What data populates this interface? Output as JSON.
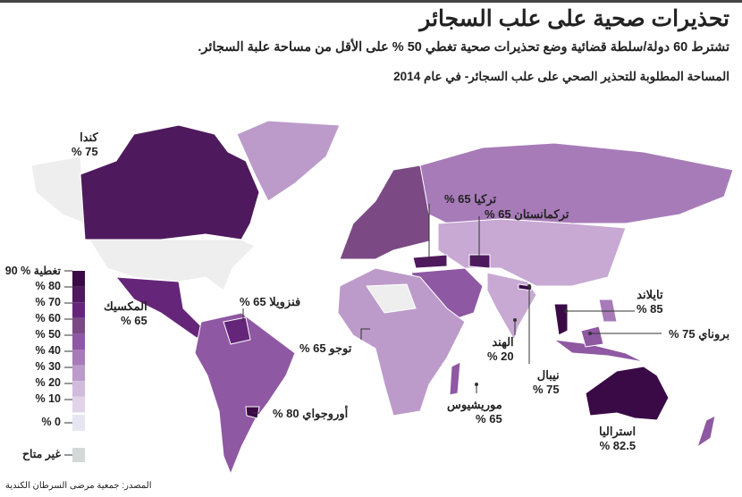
{
  "title": "تحذيرات صحية على علب السجائر",
  "subtitle": "تشترط 60 دولة/سلطة قضائية وضع تحذيرات صحية تغطي 50 % على الأقل من مساحة علبة السجائر.",
  "map_label": "المساحة المطلوبة للتحذير الصحي على علب السجائر- في عام 2014",
  "source": "المصدر: جمعية مرضى السرطان الكندية",
  "legend": {
    "items": [
      {
        "label": "90 % تغطية",
        "color": "#3a0a47"
      },
      {
        "label": "% 80",
        "color": "#4e1a5d"
      },
      {
        "label": "% 70",
        "color": "#65267a"
      },
      {
        "label": "% 60",
        "color": "#7b4a85"
      },
      {
        "label": "% 50",
        "color": "#8f58a3"
      },
      {
        "label": "% 40",
        "color": "#a77bb8"
      },
      {
        "label": "% 30",
        "color": "#bc9bca"
      },
      {
        "label": "% 20",
        "color": "#d1bbdc"
      },
      {
        "label": "% 10",
        "color": "#e1d3e8"
      },
      {
        "label": "% 0",
        "color": "#e6e6f3"
      }
    ],
    "not_available": {
      "label": "غير متاح",
      "color": "#d3d9d9"
    }
  },
  "callouts": {
    "canada": {
      "name": "كندا",
      "value": "75 %"
    },
    "mexico": {
      "name": "المكسيك",
      "value": "65 %"
    },
    "venezuela": {
      "name": "فنزويلا",
      "value": "65 %"
    },
    "togo": {
      "name": "توجو",
      "value": "65 %"
    },
    "uruguay": {
      "name": "أوروجواي",
      "value": "80 %"
    },
    "turkey": {
      "name": "تركيا",
      "value": "65 %"
    },
    "turkmenistan": {
      "name": "تركمانستان",
      "value": "65 %"
    },
    "india": {
      "name": "الهند",
      "value": "20 %"
    },
    "nepal": {
      "name": "نيبال",
      "value": "75 %"
    },
    "thailand": {
      "name": "تايلاند",
      "value": "85 %"
    },
    "brunei": {
      "name": "بروناي",
      "value": "75 %"
    },
    "mauritius": {
      "name": "موريشيوس",
      "value": "65 %"
    },
    "australia": {
      "name": "استراليا",
      "value": "82.5 %"
    }
  }
}
